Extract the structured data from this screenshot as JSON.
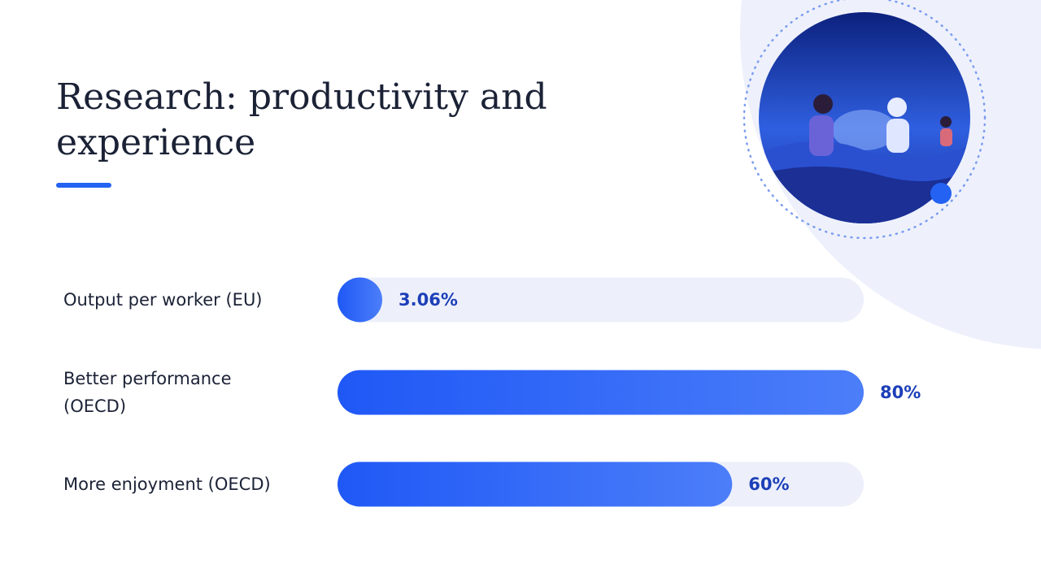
{
  "chart_data": {
    "type": "bar",
    "orientation": "horizontal",
    "title": "Research: productivity and experience",
    "categories": [
      "Output per worker (EU)",
      "Better performance (OECD)",
      "More enjoyment (OECD)"
    ],
    "values": [
      3.06,
      80,
      60
    ],
    "value_labels": [
      "3.06%",
      "80%",
      "60%"
    ],
    "xlim": [
      0,
      80
    ],
    "color": "#1f58f6"
  }
}
